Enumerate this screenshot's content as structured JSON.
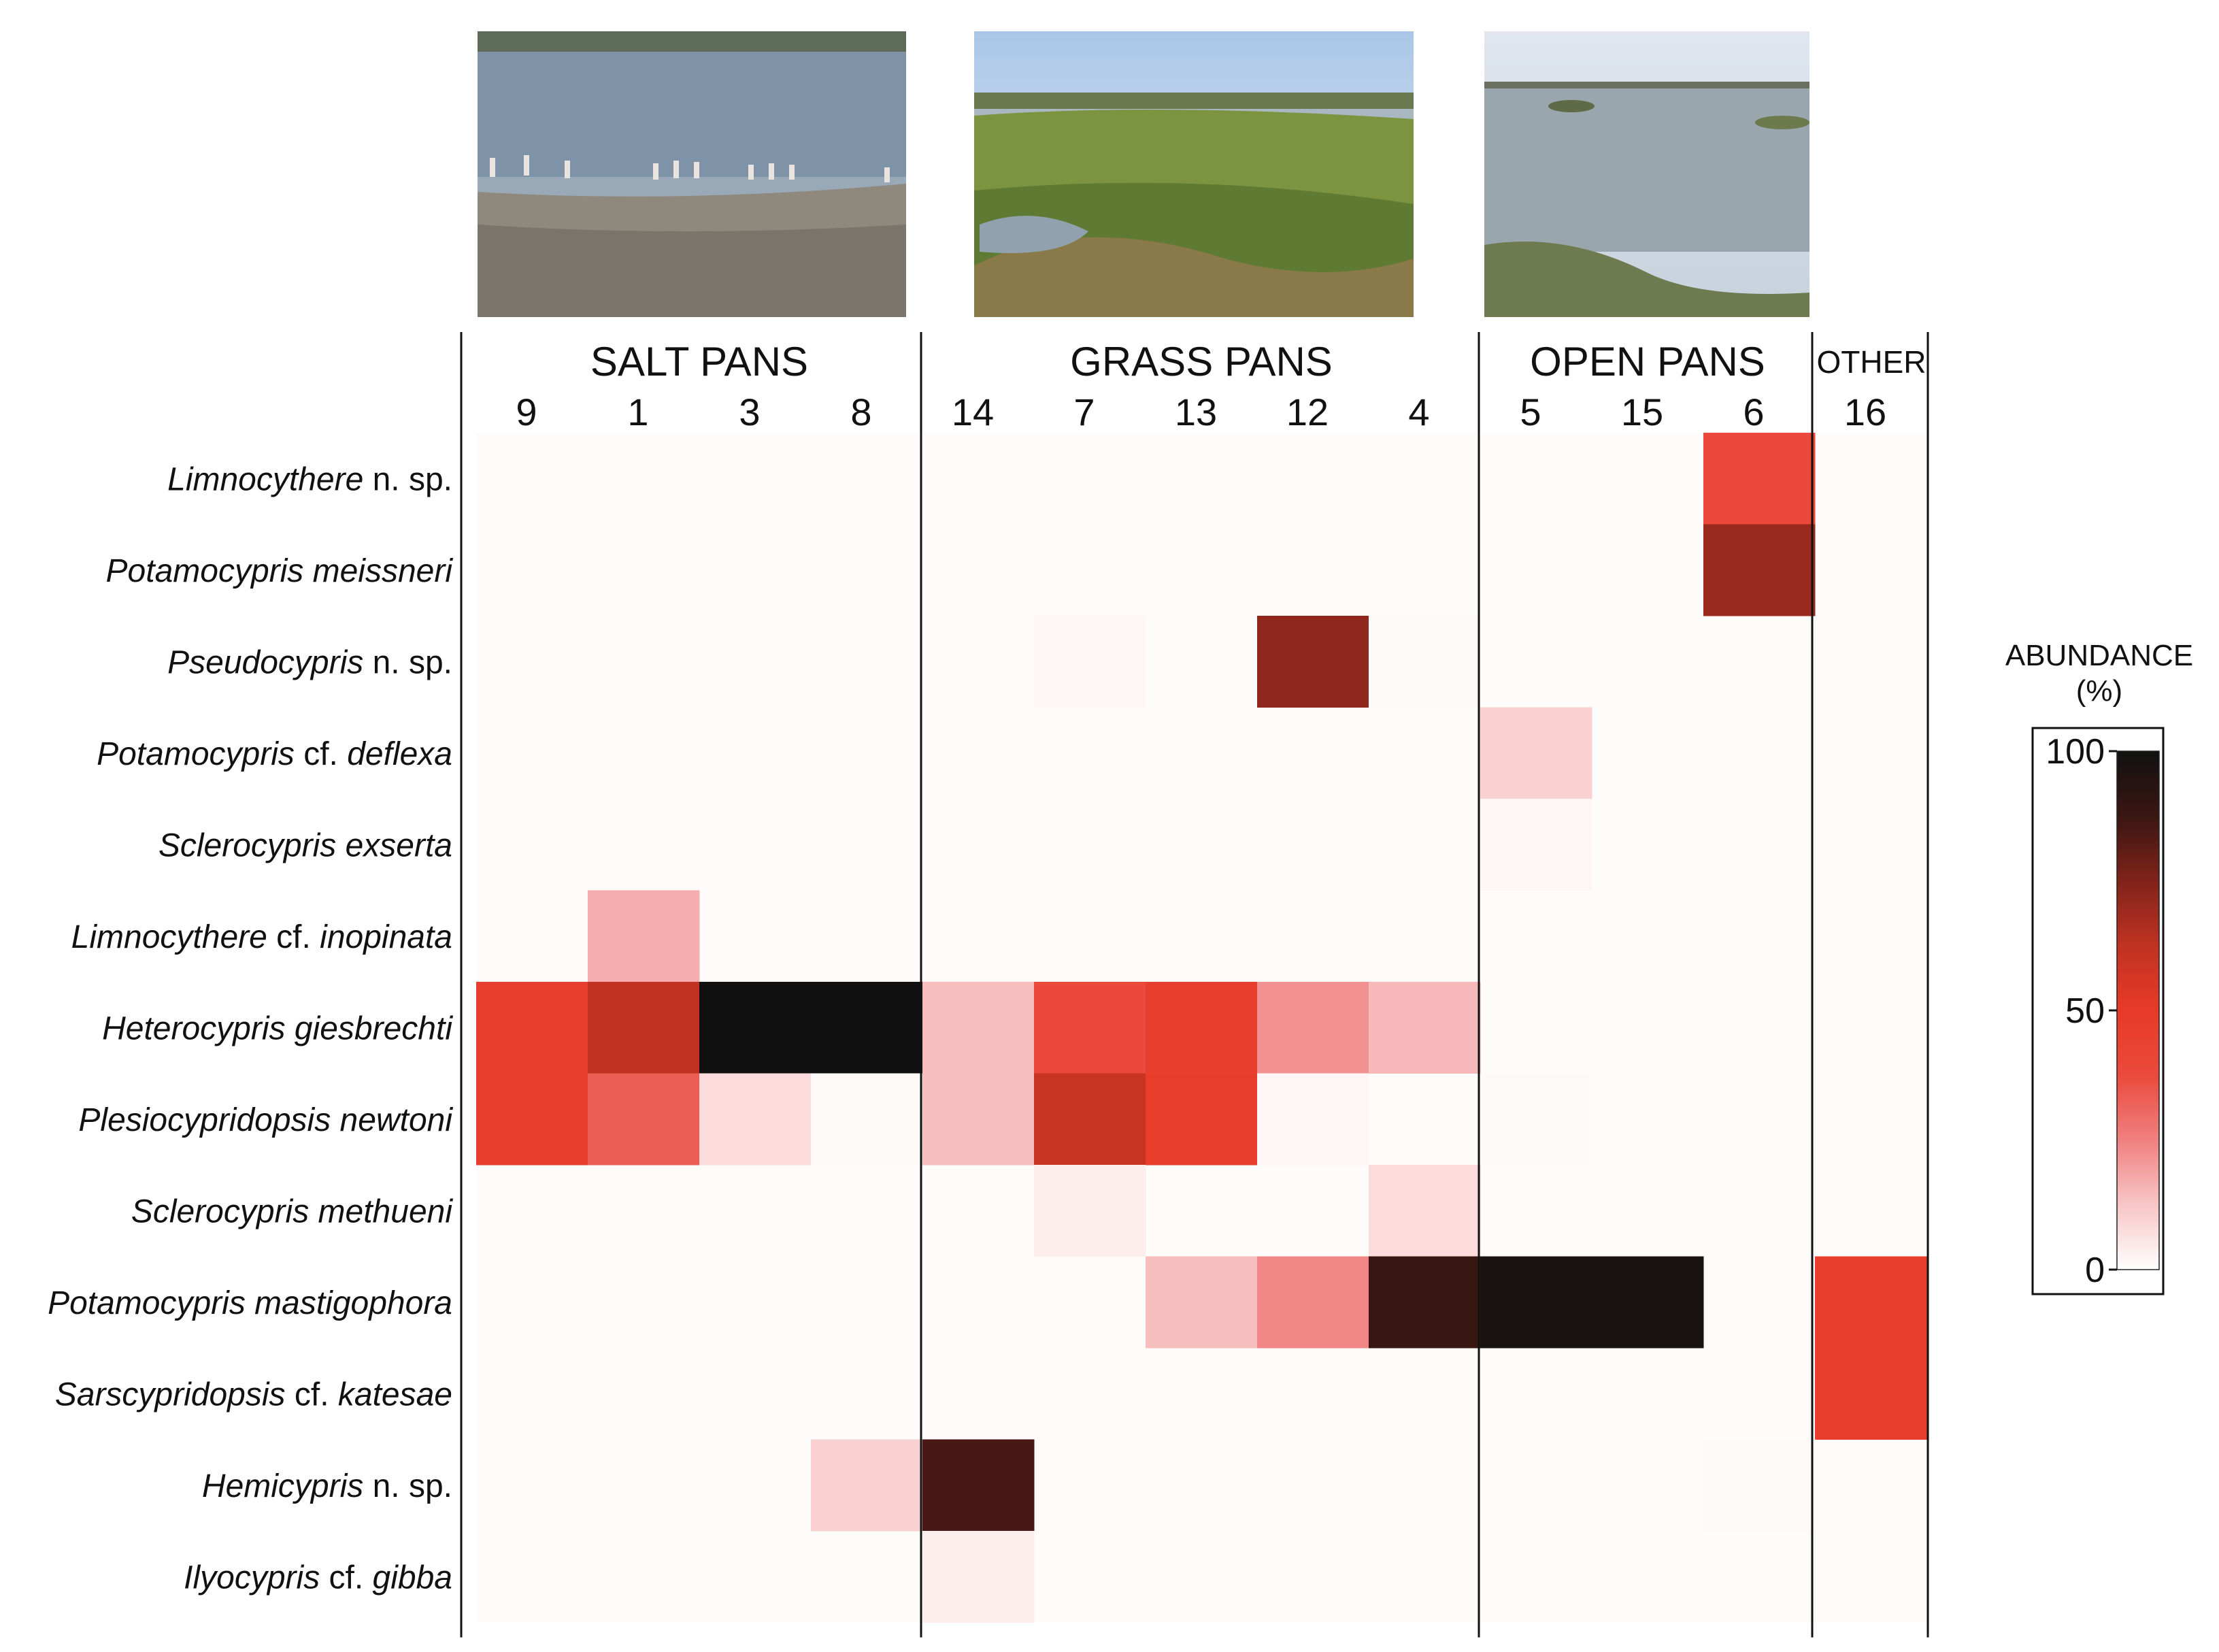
{
  "chart_data": {
    "type": "heatmap",
    "groups": [
      {
        "name": "SALT PANS",
        "sites": [
          "9",
          "1",
          "3",
          "8"
        ]
      },
      {
        "name": "GRASS PANS",
        "sites": [
          "14",
          "7",
          "13",
          "12",
          "4"
        ]
      },
      {
        "name": "OPEN PANS",
        "sites": [
          "5",
          "15",
          "6"
        ]
      },
      {
        "name": "OTHER",
        "sites": [
          "16"
        ]
      }
    ],
    "species": [
      {
        "genus": "Limnocythere",
        "epithet": "n. sp.",
        "epithet_italic": false
      },
      {
        "genus": "Potamocypris",
        "epithet": "meissneri",
        "epithet_italic": true
      },
      {
        "genus": "Pseudocypris",
        "epithet": "n. sp.",
        "epithet_italic": false
      },
      {
        "genus": "Potamocypris",
        "epithet": "cf.",
        "epithet_italic": false,
        "suffix": "deflexa"
      },
      {
        "genus": "Sclerocypris",
        "epithet": "exserta",
        "epithet_italic": true
      },
      {
        "genus": "Limnocythere",
        "epithet": "cf.",
        "epithet_italic": false,
        "suffix": "inopinata"
      },
      {
        "genus": "Heterocypris",
        "epithet": "giesbrechti",
        "epithet_italic": true
      },
      {
        "genus": "Plesiocypridopsis",
        "epithet": "newtoni",
        "epithet_italic": true
      },
      {
        "genus": "Sclerocypris",
        "epithet": "methueni",
        "epithet_italic": true
      },
      {
        "genus": "Potamocypris",
        "epithet": "mastigophora",
        "epithet_italic": true
      },
      {
        "genus": "Sarscypridopsis",
        "epithet": "cf.",
        "epithet_italic": false,
        "suffix": "katesae"
      },
      {
        "genus": "Hemicypris",
        "epithet": "n. sp.",
        "epithet_italic": false
      },
      {
        "genus": "Ilyocypris",
        "epithet": "cf.",
        "epithet_italic": false,
        "suffix": "gibba"
      }
    ],
    "values": [
      [
        0,
        0,
        0,
        0,
        0,
        0,
        0,
        0,
        0,
        0,
        0,
        38,
        0
      ],
      [
        0,
        0,
        0,
        0,
        0,
        0,
        0,
        0,
        0,
        0,
        0,
        70,
        0
      ],
      [
        0,
        0,
        0,
        0,
        0,
        2,
        0,
        72,
        1,
        0,
        0,
        0,
        0
      ],
      [
        0,
        0,
        0,
        0,
        0,
        0,
        0,
        0,
        0,
        10,
        0,
        0,
        0
      ],
      [
        0,
        0,
        0,
        0,
        0,
        0,
        0,
        0,
        0,
        2,
        0,
        0,
        0
      ],
      [
        0,
        17,
        0,
        0,
        0,
        0,
        0,
        0,
        0,
        0,
        0,
        0,
        0
      ],
      [
        47,
        62,
        100,
        100,
        14,
        38,
        47,
        22,
        15,
        0,
        0,
        0,
        0
      ],
      [
        47,
        33,
        8,
        1,
        14,
        60,
        48,
        2,
        0,
        1,
        0,
        0,
        0
      ],
      [
        0,
        0,
        0,
        0,
        0,
        4,
        0,
        0,
        8,
        0,
        0,
        0,
        0
      ],
      [
        0,
        0,
        0,
        0,
        0,
        0,
        14,
        24,
        88,
        98,
        98,
        0,
        47
      ],
      [
        0,
        0,
        0,
        0,
        0,
        0,
        0,
        0,
        0,
        0,
        0,
        0,
        47
      ],
      [
        0,
        0,
        0,
        10,
        85,
        0,
        0,
        0,
        0,
        0,
        0,
        1,
        0
      ],
      [
        0,
        0,
        0,
        0,
        4,
        0,
        0,
        0,
        0,
        0,
        0,
        0,
        0
      ]
    ],
    "legend": {
      "title_line1": "ABUNDANCE",
      "title_line2": "(%)",
      "ticks": [
        "100",
        "50",
        "0"
      ],
      "min": 0,
      "max": 100,
      "placement": "right"
    },
    "colors": {
      "scale": [
        "#ffffff",
        "#f8c6c6",
        "#f08080",
        "#ea4a3c",
        "#e83a28",
        "#c03222",
        "#80231a",
        "#3a1612",
        "#111111"
      ],
      "salt_photo": [
        "#b5c7d8",
        "#7d8fa3",
        "#8b8578"
      ],
      "grass_photo": [
        "#c6d9ec",
        "#6f8d3a",
        "#556b2f"
      ],
      "open_photo": [
        "#cfd8e3",
        "#8a9aa6",
        "#6f7f62"
      ]
    }
  },
  "photos": [
    {
      "icon": "salt-pan-photo"
    },
    {
      "icon": "grass-pan-photo"
    },
    {
      "icon": "open-pan-photo"
    }
  ]
}
